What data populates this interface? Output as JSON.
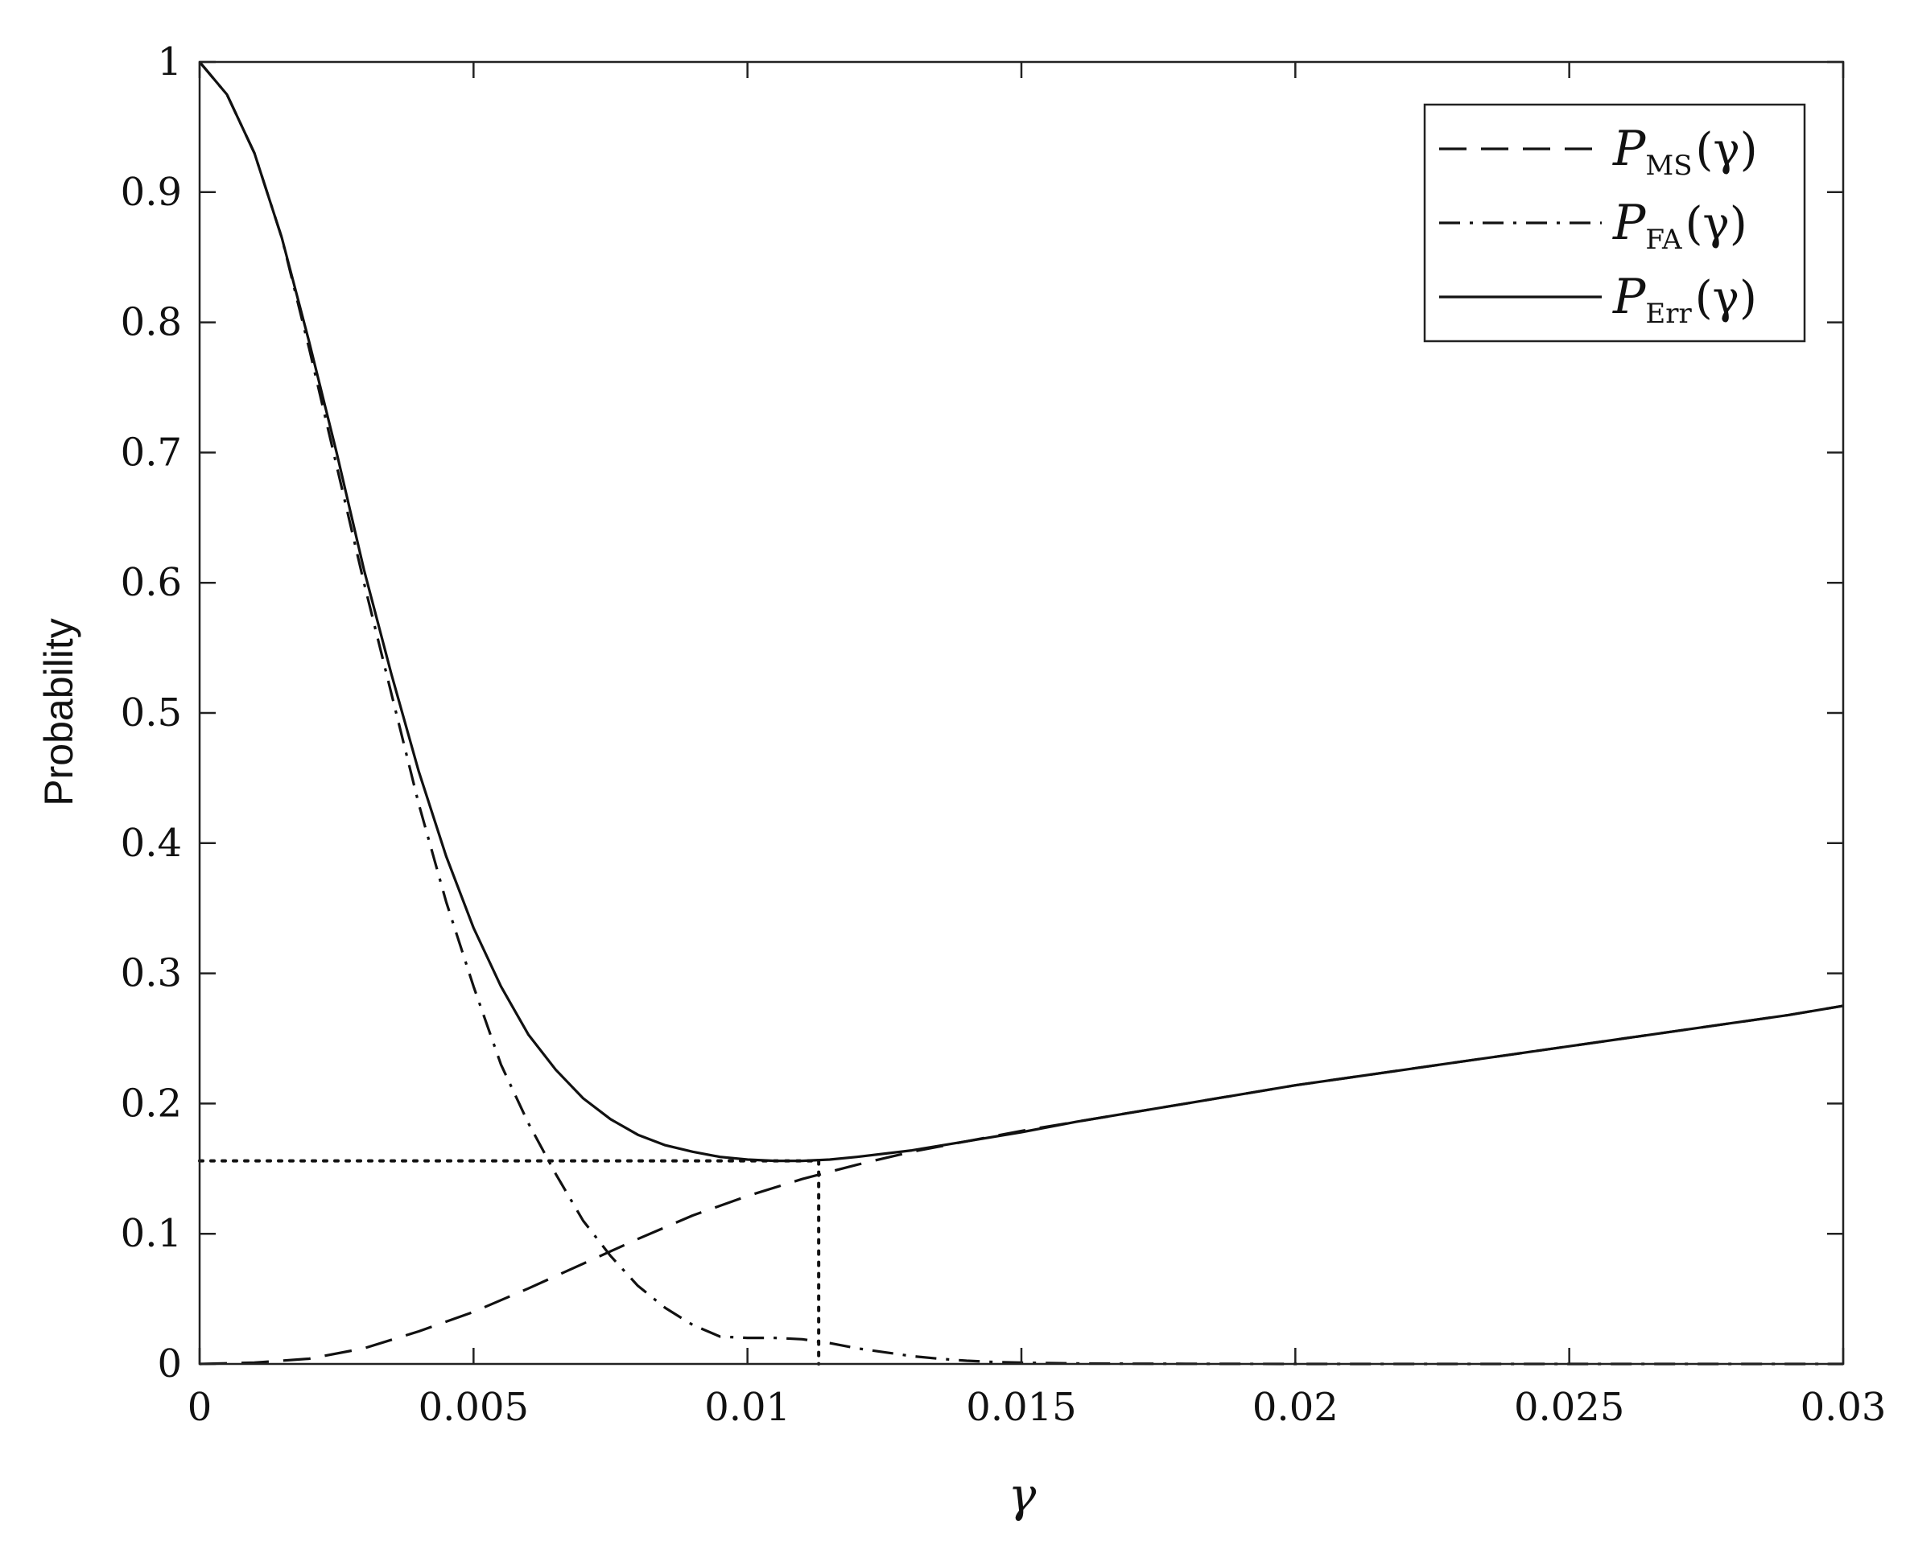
{
  "chart_data": {
    "type": "line",
    "xlabel": "γ",
    "ylabel": "Probability",
    "xlim": [
      0,
      0.03
    ],
    "ylim": [
      0,
      1
    ],
    "xticks": [
      0,
      0.005,
      0.01,
      0.015,
      0.02,
      0.025,
      0.03
    ],
    "xtick_labels": [
      "0",
      "0.005",
      "0.01",
      "0.015",
      "0.02",
      "0.025",
      "0.03"
    ],
    "yticks": [
      0,
      0.1,
      0.2,
      0.3,
      0.4,
      0.5,
      0.6,
      0.7,
      0.8,
      0.9,
      1
    ],
    "ytick_labels": [
      "0",
      "0.1",
      "0.2",
      "0.3",
      "0.4",
      "0.5",
      "0.6",
      "0.7",
      "0.8",
      "0.9",
      "1"
    ],
    "grid": false,
    "legend_position": "top-right",
    "series": [
      {
        "name": "P_MS(γ)",
        "legend_main": "P",
        "legend_sub": "MS",
        "legend_tail": "(γ)",
        "style": "dashed",
        "x": [
          0,
          0.001,
          0.002,
          0.003,
          0.004,
          0.005,
          0.006,
          0.007,
          0.008,
          0.009,
          0.01,
          0.011,
          0.012,
          0.013,
          0.014,
          0.015,
          0.016,
          0.017,
          0.018,
          0.019,
          0.02,
          0.021,
          0.022,
          0.023,
          0.024,
          0.025,
          0.026,
          0.027,
          0.028,
          0.029,
          0.03
        ],
        "y": [
          0.0,
          0.001,
          0.004,
          0.012,
          0.025,
          0.04,
          0.058,
          0.077,
          0.096,
          0.114,
          0.129,
          0.142,
          0.153,
          0.163,
          0.171,
          0.179,
          0.186,
          0.193,
          0.2,
          0.207,
          0.214,
          0.22,
          0.226,
          0.232,
          0.238,
          0.244,
          0.25,
          0.256,
          0.262,
          0.268,
          0.275
        ]
      },
      {
        "name": "P_FA(γ)",
        "legend_main": "P",
        "legend_sub": "FA",
        "legend_tail": "(γ)",
        "style": "dashdot",
        "x": [
          0,
          0.0005,
          0.001,
          0.0015,
          0.002,
          0.0025,
          0.003,
          0.0035,
          0.004,
          0.0045,
          0.005,
          0.0055,
          0.006,
          0.0065,
          0.007,
          0.0075,
          0.008,
          0.0085,
          0.009,
          0.0095,
          0.01,
          0.0105,
          0.011,
          0.0115,
          0.012,
          0.0125,
          0.013,
          0.0135,
          0.014,
          0.0145,
          0.015,
          0.016,
          0.017,
          0.018,
          0.02,
          0.022,
          0.025,
          0.03
        ],
        "y": [
          1.0,
          0.975,
          0.93,
          0.865,
          0.78,
          0.69,
          0.6,
          0.515,
          0.43,
          0.355,
          0.29,
          0.23,
          0.185,
          0.146,
          0.11,
          0.083,
          0.06,
          0.043,
          0.03,
          0.021,
          0.02,
          0.02,
          0.019,
          0.016,
          0.012,
          0.009,
          0.006,
          0.004,
          0.0025,
          0.0015,
          0.001,
          0.0004,
          0.0002,
          0.0001,
          0.0,
          0.0,
          0.0,
          0.0
        ]
      },
      {
        "name": "P_Err(γ)",
        "legend_main": "P",
        "legend_sub": "Err",
        "legend_tail": "(γ)",
        "style": "solid",
        "x": [
          0,
          0.0005,
          0.001,
          0.0015,
          0.002,
          0.0025,
          0.003,
          0.0035,
          0.004,
          0.0045,
          0.005,
          0.0055,
          0.006,
          0.0065,
          0.007,
          0.0075,
          0.008,
          0.0085,
          0.009,
          0.0095,
          0.01,
          0.0105,
          0.011,
          0.0115,
          0.012,
          0.013,
          0.014,
          0.015,
          0.016,
          0.017,
          0.018,
          0.019,
          0.02,
          0.021,
          0.022,
          0.023,
          0.024,
          0.025,
          0.026,
          0.027,
          0.028,
          0.029,
          0.03
        ],
        "y": [
          1.0,
          0.975,
          0.93,
          0.865,
          0.785,
          0.7,
          0.61,
          0.53,
          0.455,
          0.39,
          0.335,
          0.29,
          0.253,
          0.226,
          0.204,
          0.188,
          0.176,
          0.168,
          0.163,
          0.159,
          0.157,
          0.156,
          0.156,
          0.157,
          0.159,
          0.164,
          0.171,
          0.178,
          0.186,
          0.193,
          0.2,
          0.207,
          0.214,
          0.22,
          0.226,
          0.232,
          0.238,
          0.244,
          0.25,
          0.256,
          0.262,
          0.268,
          0.275
        ]
      }
    ],
    "annotations": [
      {
        "type": "dotted-reference-lines",
        "x": 0.0113,
        "y": 0.156
      }
    ]
  }
}
